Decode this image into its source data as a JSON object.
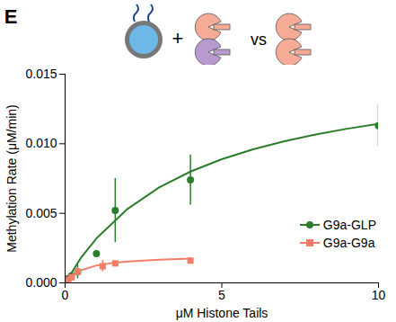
{
  "chart_data": {
    "type": "scatter",
    "annotations": [
      "E",
      "+",
      "vs"
    ],
    "x_label": "μM Histone Tails",
    "y_label": "Methylation Rate (μM/min)",
    "xlim": [
      0,
      10
    ],
    "xticks": [
      0,
      5,
      10
    ],
    "ylim": [
      0,
      0.015
    ],
    "yticks": [
      {
        "value": 0,
        "label": "0.000"
      },
      {
        "value": 0.005,
        "label": "0.005"
      },
      {
        "value": 0.01,
        "label": "0.010"
      },
      {
        "value": 0.015,
        "label": "0.015"
      }
    ],
    "grid": false,
    "legend": "bottom-right",
    "series": [
      {
        "name": "G9a-GLP",
        "color": "#2b7d2b",
        "marker": "circle",
        "x": [
          0.1,
          0.2,
          0.4,
          1,
          1.6,
          4,
          10
        ],
        "values": [
          0.0003,
          0.0005,
          0.0008,
          0.0021,
          0.0052,
          0.0074,
          0.0113
        ],
        "errors": [
          null,
          null,
          0.0005,
          null,
          0.0023,
          0.0018,
          0.0015
        ],
        "fit_x": [
          0,
          0.5,
          1,
          2,
          3,
          4,
          5,
          6,
          7,
          8,
          9,
          10
        ],
        "fit_values": [
          0,
          0.00178,
          0.0032,
          0.00533,
          0.00686,
          0.008,
          0.00889,
          0.0096,
          0.01018,
          0.01067,
          0.01108,
          0.01143
        ]
      },
      {
        "name": "G9a-G9a",
        "color": "#f27e6a",
        "marker": "square",
        "x": [
          0.1,
          0.2,
          0.4,
          1.2,
          1.6,
          4
        ],
        "values": [
          0.0002,
          0.0004,
          0.0008,
          0.0012,
          0.0014,
          0.0016
        ],
        "errors": [
          null,
          null,
          0.0003,
          0.0004,
          null,
          0.0002
        ],
        "fit_x": [
          0,
          0.25,
          0.5,
          1,
          1.5,
          2,
          3,
          4
        ],
        "fit_values": [
          0,
          0.00059,
          0.00091,
          0.00125,
          0.00143,
          0.00154,
          0.00167,
          0.00174
        ]
      }
    ]
  }
}
